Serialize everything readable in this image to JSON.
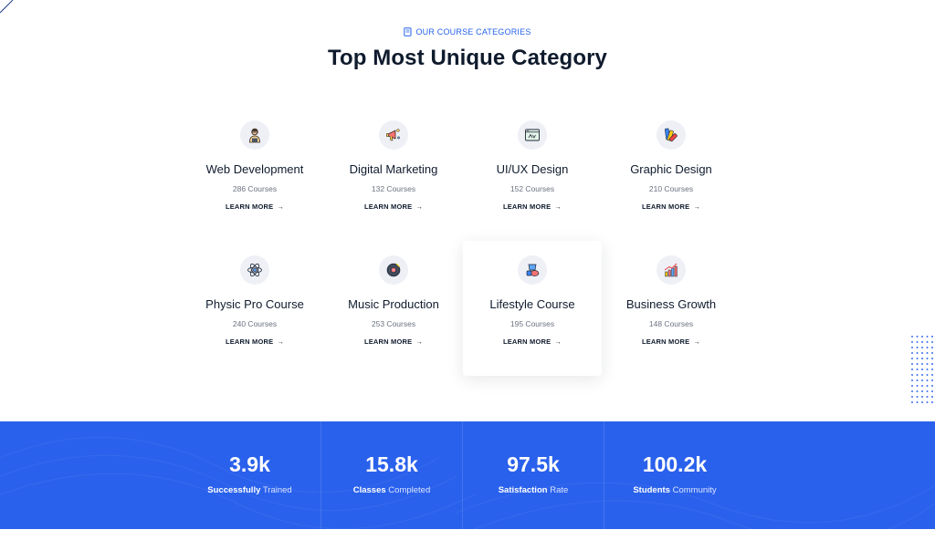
{
  "section": {
    "eyebrow": "OUR COURSE CATEGORIES",
    "title": "Top Most Unique Category"
  },
  "categories": [
    {
      "title": "Web Development",
      "count": "286 Courses",
      "link": "LEARN MORE",
      "icon": "developer-icon"
    },
    {
      "title": "Digital Marketing",
      "count": "132 Courses",
      "link": "LEARN MORE",
      "icon": "megaphone-icon"
    },
    {
      "title": "UI/UX Design",
      "count": "152 Courses",
      "link": "LEARN MORE",
      "icon": "browser-design-icon"
    },
    {
      "title": "Graphic Design",
      "count": "210 Courses",
      "link": "LEARN MORE",
      "icon": "color-palette-icon"
    },
    {
      "title": "Physic Pro Course",
      "count": "240 Courses",
      "link": "LEARN MORE",
      "icon": "atom-icon"
    },
    {
      "title": "Music Production",
      "count": "253 Courses",
      "link": "LEARN MORE",
      "icon": "vinyl-record-icon"
    },
    {
      "title": "Lifestyle Course",
      "count": "195 Courses",
      "link": "LEARN MORE",
      "icon": "lifestyle-icon"
    },
    {
      "title": "Business Growth",
      "count": "148 Courses",
      "link": "LEARN MORE",
      "icon": "growth-chart-icon"
    }
  ],
  "stats": [
    {
      "value": "3.9k",
      "bold": "Successfully",
      "rest": " Trained"
    },
    {
      "value": "15.8k",
      "bold": "Classes",
      "rest": " Completed"
    },
    {
      "value": "97.5k",
      "bold": "Satisfaction",
      "rest": " Rate"
    },
    {
      "value": "100.2k",
      "bold": "Students",
      "rest": " Community"
    }
  ],
  "colors": {
    "accent": "#2563eb",
    "stats_band": "#2a61ec",
    "heading": "#0f1b2d"
  }
}
